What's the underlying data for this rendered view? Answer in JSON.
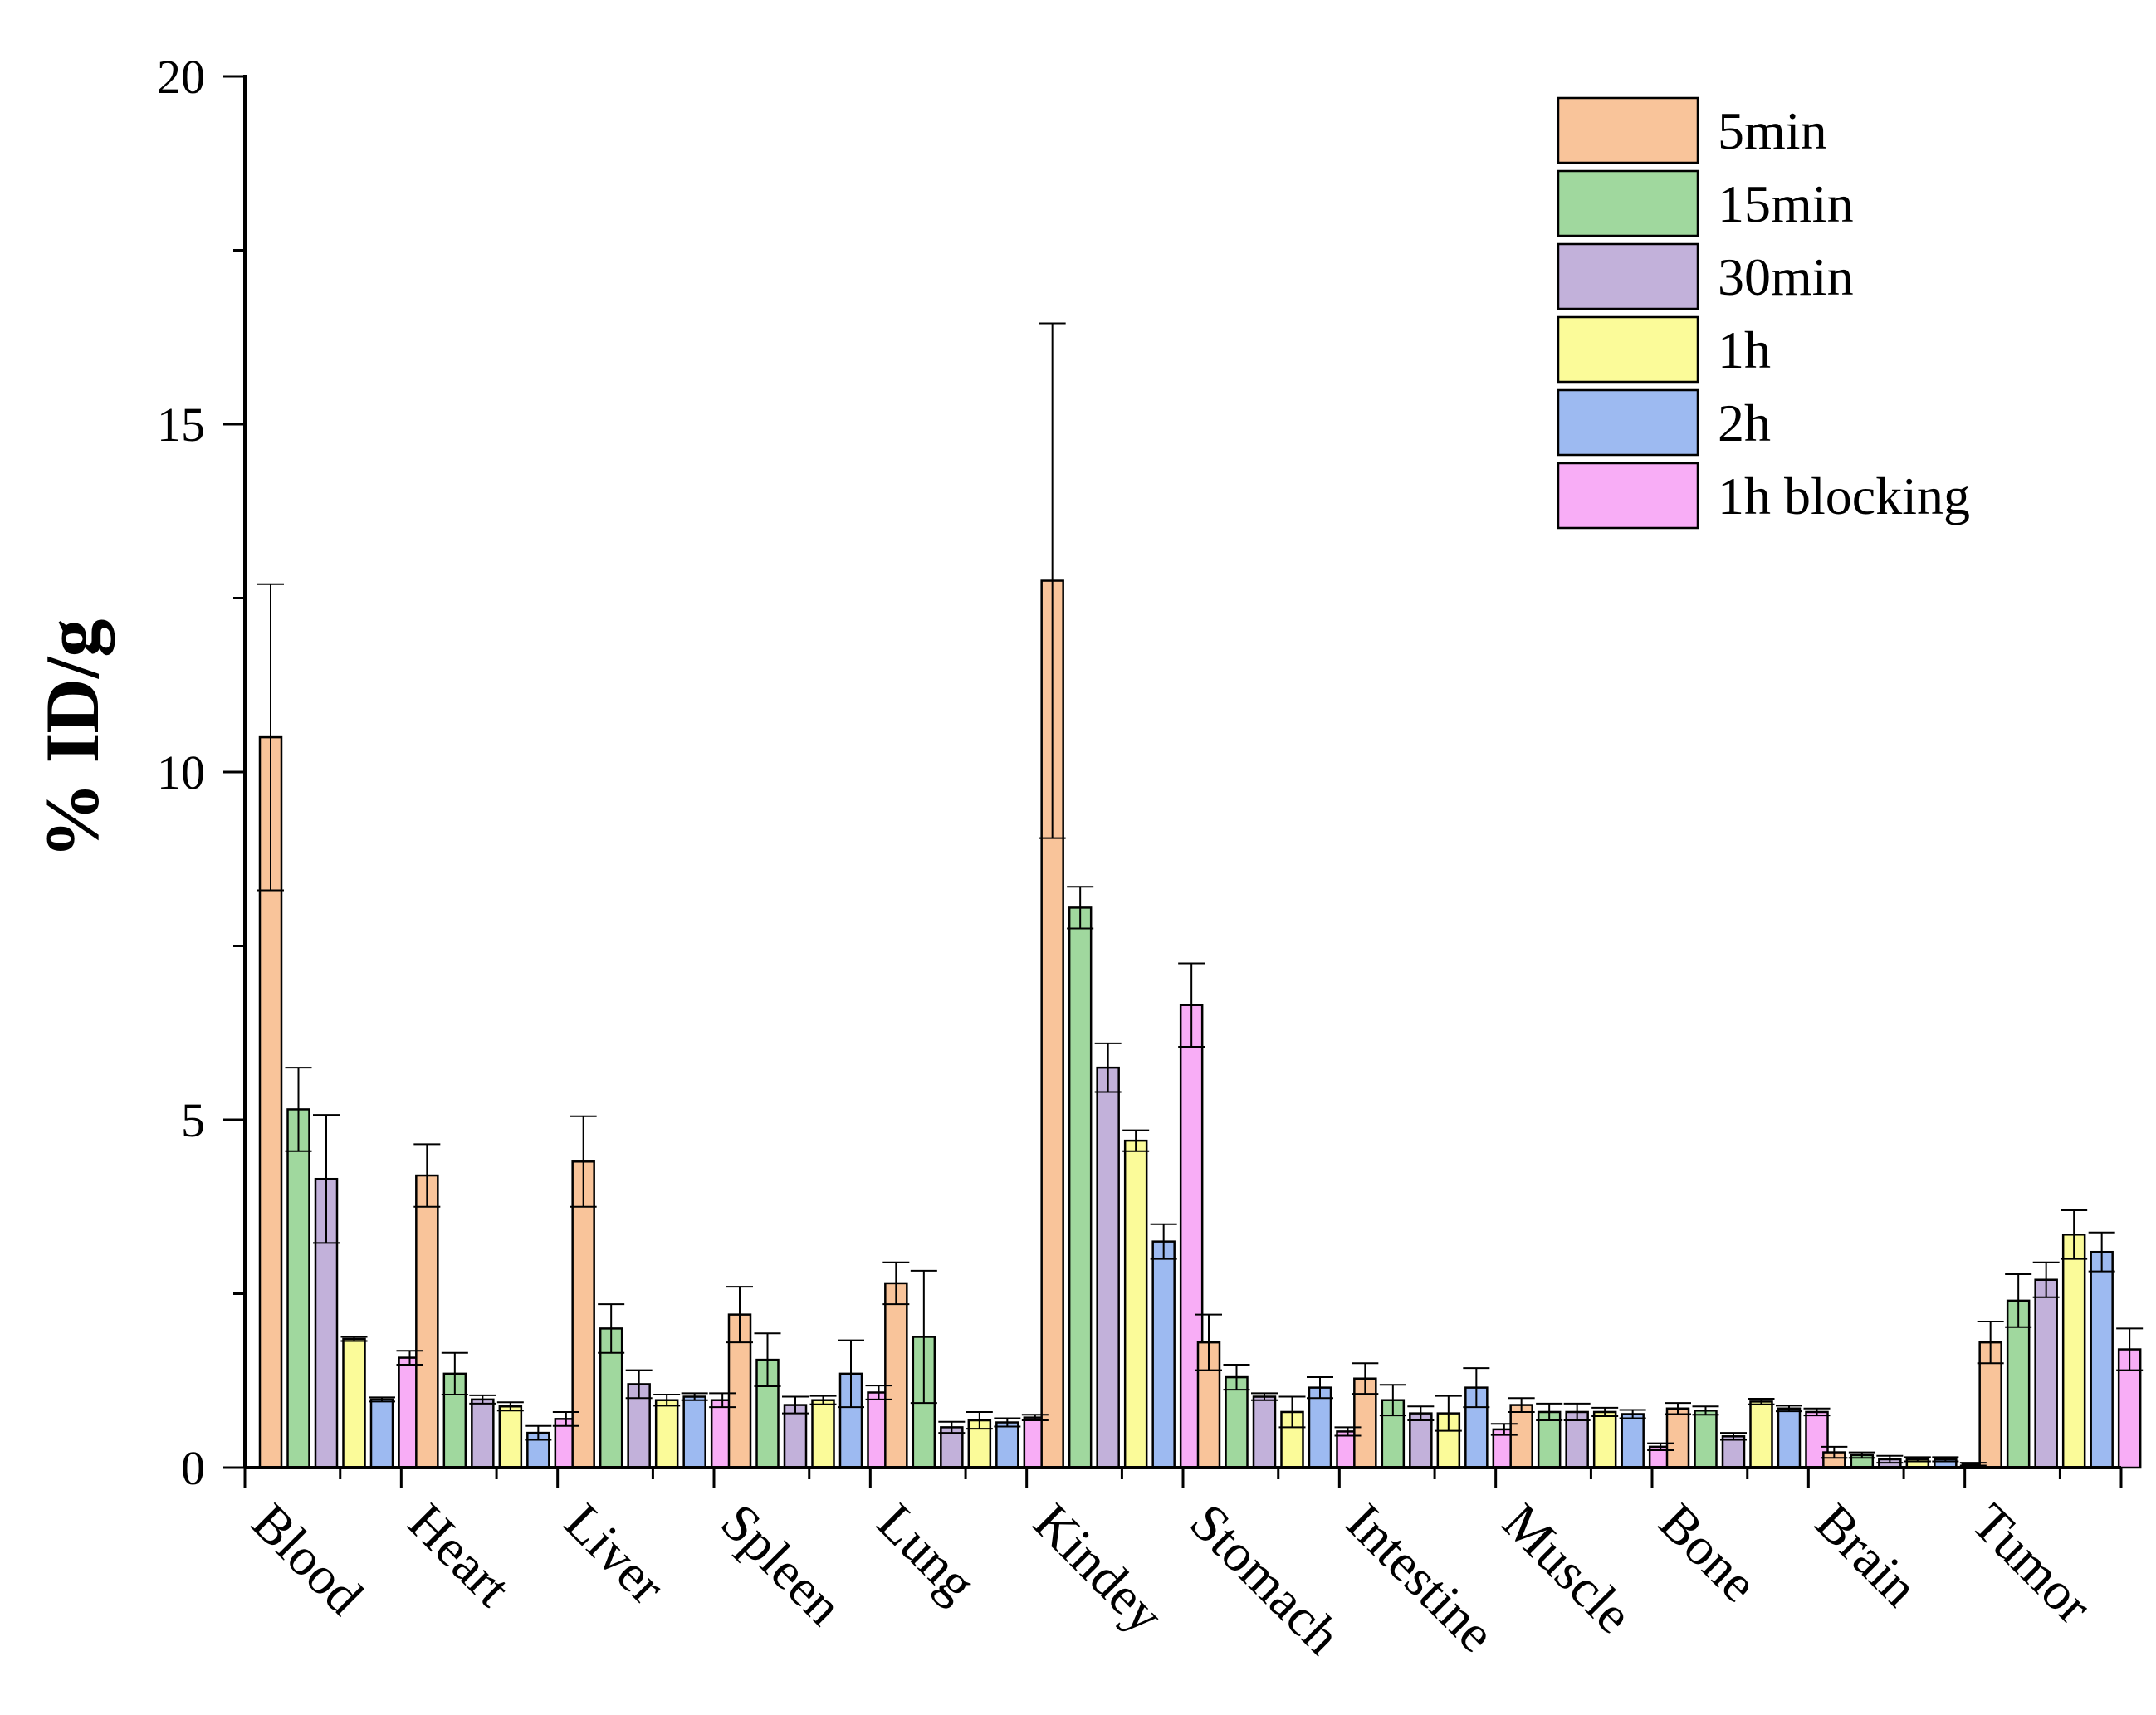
{
  "chart_data": {
    "type": "bar",
    "title": "",
    "xlabel": "",
    "ylabel": "% ID/g",
    "ylim": [
      0,
      20
    ],
    "yticks": [
      0,
      5,
      10,
      15,
      20
    ],
    "yticks_labeled": [
      "0",
      "5",
      "10",
      "15",
      "20"
    ],
    "grid": false,
    "legend_position": "top-right",
    "categories": [
      "Blood",
      "Heart",
      "Liver",
      "Spleen",
      "Lung",
      "Kindey",
      "Stomach",
      "Intestine",
      "Muscle",
      "Bone",
      "Brain",
      "Tumor"
    ],
    "series": [
      {
        "name": "5min",
        "color": "#F9C49A",
        "values": [
          10.5,
          4.2,
          4.4,
          2.2,
          2.65,
          12.75,
          1.8,
          1.28,
          0.9,
          0.85,
          0.22,
          1.8
        ],
        "errors": [
          2.2,
          0.45,
          0.65,
          0.4,
          0.3,
          3.7,
          0.4,
          0.22,
          0.1,
          0.08,
          0.08,
          0.3
        ]
      },
      {
        "name": "15min",
        "color": "#A0D89E",
        "values": [
          5.15,
          1.35,
          2.0,
          1.55,
          1.88,
          8.05,
          1.3,
          0.97,
          0.8,
          0.82,
          0.18,
          2.4
        ],
        "errors": [
          0.6,
          0.3,
          0.35,
          0.38,
          0.95,
          0.3,
          0.18,
          0.22,
          0.12,
          0.06,
          0.04,
          0.38
        ]
      },
      {
        "name": "30min",
        "color": "#C2B1DA",
        "values": [
          4.15,
          0.98,
          1.2,
          0.9,
          0.58,
          5.75,
          1.02,
          0.78,
          0.8,
          0.45,
          0.12,
          2.7
        ],
        "errors": [
          0.92,
          0.06,
          0.2,
          0.12,
          0.08,
          0.35,
          0.05,
          0.1,
          0.12,
          0.05,
          0.05,
          0.25
        ]
      },
      {
        "name": "1h",
        "color": "#FBFB99",
        "values": [
          1.85,
          0.88,
          0.97,
          0.97,
          0.68,
          4.7,
          0.8,
          0.78,
          0.8,
          0.95,
          0.12,
          3.35
        ],
        "errors": [
          0.03,
          0.06,
          0.08,
          0.06,
          0.12,
          0.15,
          0.22,
          0.25,
          0.06,
          0.04,
          0.03,
          0.35
        ]
      },
      {
        "name": "2h",
        "color": "#9DBAF1",
        "values": [
          0.98,
          0.5,
          1.02,
          1.35,
          0.65,
          3.25,
          1.15,
          1.15,
          0.77,
          0.85,
          0.12,
          3.1
        ],
        "errors": [
          0.03,
          0.1,
          0.05,
          0.48,
          0.06,
          0.25,
          0.15,
          0.28,
          0.06,
          0.04,
          0.03,
          0.28
        ]
      },
      {
        "name": "1h blocking",
        "color": "#F8ADF6",
        "values": [
          1.58,
          0.7,
          0.97,
          1.08,
          0.72,
          6.65,
          0.52,
          0.55,
          0.3,
          0.8,
          0.05,
          1.7
        ],
        "errors": [
          0.1,
          0.1,
          0.1,
          0.1,
          0.04,
          0.6,
          0.06,
          0.08,
          0.05,
          0.05,
          0.02,
          0.3
        ]
      }
    ]
  }
}
